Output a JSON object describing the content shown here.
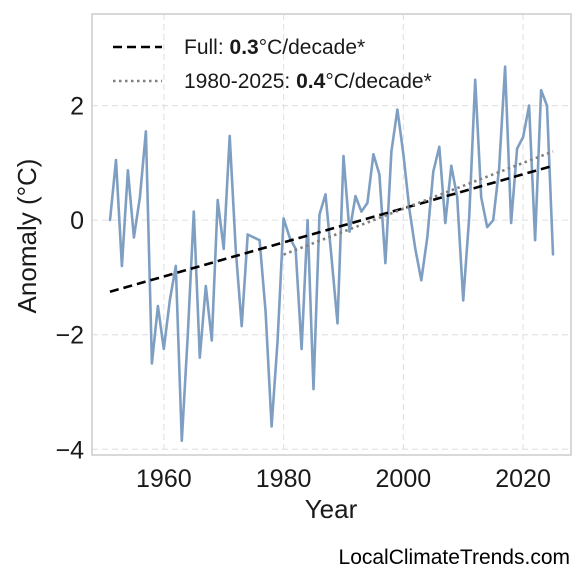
{
  "chart_data": {
    "type": "line",
    "xlabel": "Year",
    "ylabel": "Anomaly (°C)",
    "xlim": [
      1948,
      2028
    ],
    "ylim": [
      -4.1,
      3.6
    ],
    "xticks": [
      1960,
      1980,
      2000,
      2020
    ],
    "yticks": [
      -4,
      -2,
      0,
      2
    ],
    "ytick_labels": [
      "−4",
      "−2",
      "0",
      "2"
    ],
    "grid": true,
    "legend_position": "top-left",
    "series": [
      {
        "kind": "observed",
        "color": "#7f9fc2",
        "x": [
          1951,
          1952,
          1953,
          1954,
          1955,
          1956,
          1957,
          1958,
          1959,
          1960,
          1961,
          1962,
          1963,
          1964,
          1965,
          1966,
          1967,
          1968,
          1969,
          1970,
          1971,
          1972,
          1973,
          1974,
          1975,
          1976,
          1977,
          1978,
          1979,
          1980,
          1981,
          1982,
          1983,
          1984,
          1985,
          1986,
          1987,
          1988,
          1989,
          1990,
          1991,
          1992,
          1993,
          1994,
          1995,
          1996,
          1997,
          1998,
          1999,
          2000,
          2001,
          2002,
          2003,
          2004,
          2005,
          2006,
          2007,
          2008,
          2009,
          2010,
          2011,
          2012,
          2013,
          2014,
          2015,
          2016,
          2017,
          2018,
          2019,
          2020,
          2021,
          2022,
          2023,
          2024,
          2025
        ],
        "y": [
          0.0,
          1.05,
          -0.8,
          0.87,
          -0.3,
          0.4,
          1.55,
          -2.5,
          -1.5,
          -2.25,
          -1.4,
          -0.8,
          -3.85,
          -2.0,
          0.15,
          -2.4,
          -1.15,
          -2.1,
          0.35,
          -0.5,
          1.47,
          -0.5,
          -1.85,
          -0.25,
          -0.3,
          -0.35,
          -1.6,
          -3.6,
          -2.1,
          0.03,
          -0.3,
          -0.5,
          -2.25,
          0.0,
          -2.95,
          0.1,
          0.45,
          -0.65,
          -1.8,
          1.12,
          -0.2,
          0.42,
          0.15,
          0.3,
          1.15,
          0.8,
          -0.75,
          1.2,
          1.93,
          1.15,
          0.2,
          -0.5,
          -1.05,
          -0.3,
          0.85,
          1.28,
          -0.05,
          0.95,
          0.4,
          -1.4,
          0.05,
          2.45,
          0.4,
          -0.12,
          0.0,
          0.9,
          2.68,
          -0.05,
          1.25,
          1.45,
          2.0,
          -0.35,
          2.27,
          2.0,
          -0.6
        ]
      }
    ],
    "trend_lines": [
      {
        "label_prefix": "Full: ",
        "label_value": "0.3",
        "label_suffix": "°C/decade*",
        "style": "dashed",
        "color": "#000000",
        "x": [
          1951,
          2025
        ],
        "y": [
          -1.25,
          0.95
        ]
      },
      {
        "label_prefix": "1980-2025: ",
        "label_value": "0.4",
        "label_suffix": "°C/decade*",
        "style": "dotted",
        "color": "#808080",
        "x": [
          1980,
          2025
        ],
        "y": [
          -0.6,
          1.2
        ]
      }
    ]
  },
  "credit": "LocalClimateTrends.com"
}
